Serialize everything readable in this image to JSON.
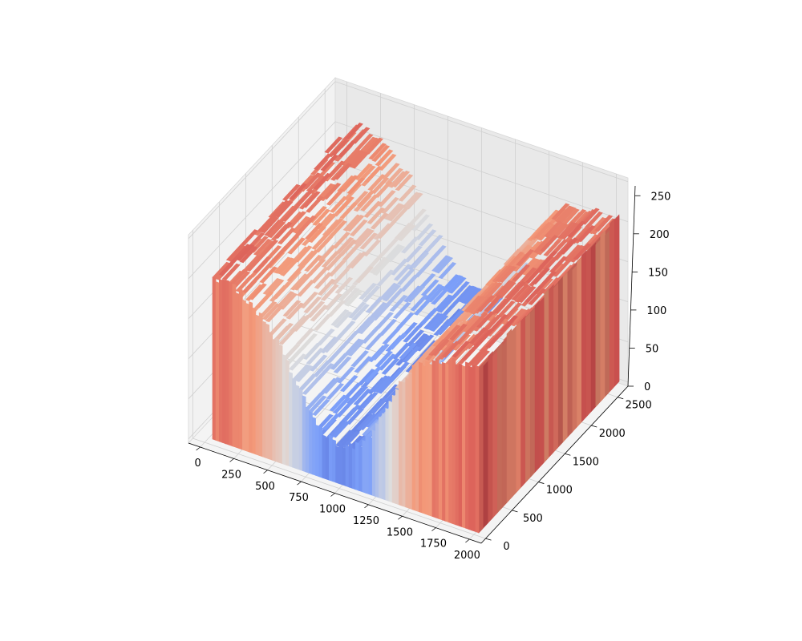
{
  "chart_data": {
    "type": "surface3d",
    "title": "",
    "xlabel": "",
    "ylabel": "",
    "zlabel": "",
    "colormap": "coolwarm",
    "xlim": [
      0,
      2000
    ],
    "ylim": [
      0,
      2600
    ],
    "zlim": [
      0,
      255
    ],
    "x_ticks": [
      "0",
      "250",
      "500",
      "750",
      "1000",
      "1250",
      "1500",
      "1750",
      "2000"
    ],
    "y_ticks": [
      "0",
      "500",
      "1000",
      "1500",
      "2000",
      "2500"
    ],
    "z_ticks": [
      "0",
      "50",
      "100",
      "150",
      "200",
      "250"
    ],
    "grid": true,
    "x_profile": {
      "x": [
        0,
        100,
        200,
        300,
        400,
        500,
        600,
        700,
        800,
        900,
        1000,
        1100,
        1200,
        1300,
        1400,
        1500,
        1600,
        1700,
        1800,
        1900,
        2000
      ],
      "values": [
        205,
        208,
        200,
        188,
        172,
        150,
        118,
        88,
        62,
        52,
        48,
        58,
        80,
        110,
        150,
        178,
        195,
        202,
        206,
        208,
        210
      ]
    }
  }
}
